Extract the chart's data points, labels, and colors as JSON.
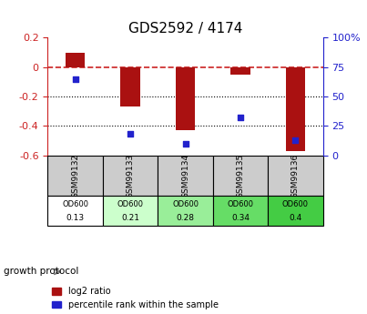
{
  "title": "GDS2592 / 4174",
  "samples": [
    "GSM99132",
    "GSM99133",
    "GSM99134",
    "GSM99135",
    "GSM99136"
  ],
  "log2_ratio": [
    0.1,
    -0.27,
    -0.43,
    -0.05,
    -0.57
  ],
  "percentile_rank": [
    65,
    18,
    10,
    32,
    13
  ],
  "ylim_left": [
    -0.6,
    0.2
  ],
  "ylim_right": [
    0,
    100
  ],
  "yticks_left": [
    0.2,
    0.0,
    -0.2,
    -0.4,
    -0.6
  ],
  "yticks_right": [
    100,
    75,
    50,
    25,
    0
  ],
  "ytick_labels_left": [
    "0.2",
    "0",
    "-0.2",
    "-0.4",
    "-0.6"
  ],
  "ytick_labels_right": [
    "100%",
    "75",
    "50",
    "25",
    "0"
  ],
  "bar_color": "#aa1111",
  "dot_color": "#2222cc",
  "hline_color": "#cc2222",
  "grid_color": "#000000",
  "od600_values": [
    "0.13",
    "0.21",
    "0.28",
    "0.34",
    "0.4"
  ],
  "od600_bg_colors": [
    "#ffffff",
    "#ccffcc",
    "#99ee99",
    "#66dd66",
    "#44cc44"
  ],
  "sample_bg_color": "#cccccc",
  "table_border_color": "#000000",
  "growth_protocol_label": "growth protocol",
  "legend_log2": "log2 ratio",
  "legend_pct": "percentile rank within the sample"
}
